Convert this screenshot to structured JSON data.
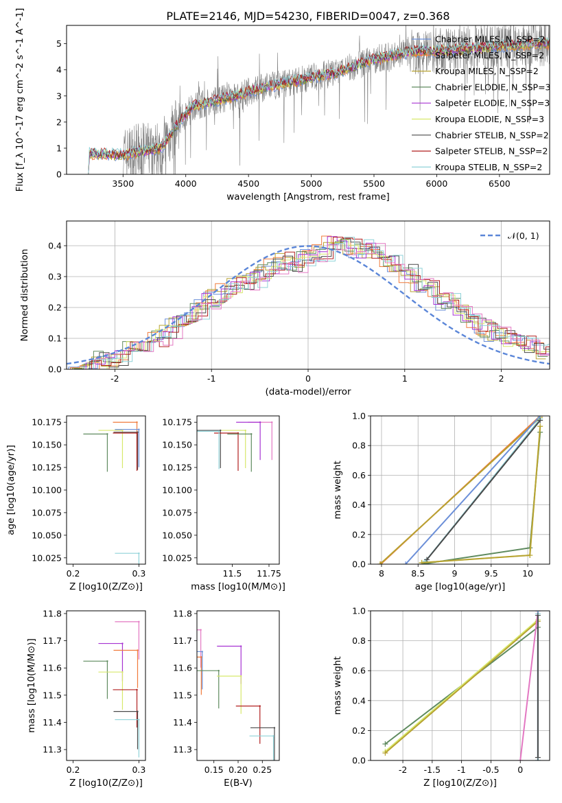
{
  "figure_title": "PLATE=2146, MJD=54230, FIBERID=0047, z=0.368",
  "colors": {
    "Chabrier MILES": "#6b8fd8",
    "Salpeter MILES": "#f07a3a",
    "Kroupa MILES": "#b7a232",
    "Chabrier ELODIE": "#5e8a5e",
    "Salpeter ELODIE": "#a632d2",
    "Kroupa ELODIE": "#d7e86b",
    "Chabrier STELIB": "#4a4a4a",
    "Salpeter STELIB": "#b01e1e",
    "Kroupa STELIB": "#8fd2d8",
    "observed": "#7f7f7f",
    "normal": "#5b86d8",
    "pink": "#e377c2"
  },
  "chart_data": [
    {
      "id": "spectrum",
      "type": "line",
      "title": "PLATE=2146, MJD=54230, FIBERID=0047, z=0.368",
      "xlabel": "wavelength [Angstrom, rest frame]",
      "ylabel": "Flux [f_λ 10^-17 erg cm^-2 s^-1 A^-1]",
      "xlim": [
        3050,
        6900
      ],
      "ylim": [
        0,
        5.7
      ],
      "xticks": [
        3500,
        4000,
        4500,
        5000,
        5500,
        6000,
        6500
      ],
      "yticks": [
        0,
        1,
        2,
        3,
        4,
        5
      ],
      "grid": false,
      "legend_position": "top-right",
      "legend": [
        {
          "label": "Chabrier MILES, N_SSP=2",
          "color": "#6b8fd8"
        },
        {
          "label": "Salpeter MILES, N_SSP=2",
          "color": "#f07a3a"
        },
        {
          "label": "Kroupa MILES, N_SSP=2",
          "color": "#b7a232"
        },
        {
          "label": "Chabrier ELODIE, N_SSP=3",
          "color": "#5e8a5e"
        },
        {
          "label": "Salpeter ELODIE, N_SSP=3",
          "color": "#a632d2"
        },
        {
          "label": "Kroupa ELODIE, N_SSP=3",
          "color": "#d7e86b"
        },
        {
          "label": "Chabrier STELIB, N_SSP=2",
          "color": "#4a4a4a"
        },
        {
          "label": "Salpeter STELIB, N_SSP=2",
          "color": "#b01e1e"
        },
        {
          "label": "Kroupa STELIB, N_SSP=2",
          "color": "#8fd2d8"
        }
      ],
      "continuum_trend": [
        [
          3200,
          0.8
        ],
        [
          3500,
          0.75
        ],
        [
          3800,
          1.0
        ],
        [
          3950,
          2.0
        ],
        [
          4050,
          2.6
        ],
        [
          4400,
          3.0
        ],
        [
          4600,
          3.3
        ],
        [
          5000,
          3.7
        ],
        [
          5200,
          3.9
        ],
        [
          5500,
          4.4
        ],
        [
          5800,
          4.7
        ],
        [
          6100,
          4.75
        ],
        [
          6500,
          4.9
        ],
        [
          6800,
          5.0
        ]
      ],
      "observed_range": [
        3500,
        6900
      ]
    },
    {
      "id": "residuals",
      "type": "line",
      "xlabel": "(data-model)/error",
      "ylabel": "Normed distribution",
      "xlim": [
        -2.5,
        2.5
      ],
      "ylim": [
        0,
        0.48
      ],
      "xticks": [
        -2,
        -1,
        0,
        1,
        2
      ],
      "yticks": [
        0.0,
        0.1,
        0.2,
        0.3,
        0.4
      ],
      "grid": true,
      "legend_position": "top-right",
      "legend": [
        {
          "label": "𝒩(0, 1)",
          "color": "#5b86d8",
          "style": "dashed"
        }
      ],
      "histogram_bins": [
        -2.45,
        -2.35,
        -2.25,
        -2.15,
        -2.05,
        -1.95,
        -1.85,
        -1.75,
        -1.65,
        -1.55,
        -1.45,
        -1.35,
        -1.25,
        -1.15,
        -1.05,
        -0.95,
        -0.85,
        -0.75,
        -0.65,
        -0.55,
        -0.45,
        -0.35,
        -0.25,
        -0.15,
        -0.05,
        0.05,
        0.15,
        0.25,
        0.35,
        0.45,
        0.55,
        0.65,
        0.75,
        0.85,
        0.95,
        1.05,
        1.15,
        1.25,
        1.35,
        1.45,
        1.55,
        1.65,
        1.75,
        1.85,
        1.95,
        2.05,
        2.15,
        2.25,
        2.35,
        2.45
      ],
      "histogram_values": [
        0.01,
        0.01,
        0.02,
        0.03,
        0.02,
        0.04,
        0.06,
        0.07,
        0.09,
        0.1,
        0.12,
        0.15,
        0.16,
        0.19,
        0.22,
        0.23,
        0.25,
        0.27,
        0.28,
        0.29,
        0.31,
        0.33,
        0.35,
        0.34,
        0.36,
        0.37,
        0.38,
        0.41,
        0.4,
        0.4,
        0.39,
        0.38,
        0.37,
        0.36,
        0.34,
        0.31,
        0.28,
        0.26,
        0.24,
        0.22,
        0.2,
        0.18,
        0.15,
        0.13,
        0.11,
        0.1,
        0.09,
        0.08,
        0.07,
        0.06
      ]
    },
    {
      "id": "age-vs-Z",
      "type": "scatter",
      "xlabel": "Z [log10(Z/Z⊙)]",
      "ylabel": "age  [log10(age/yr)]",
      "xlim": [
        0.19,
        0.31
      ],
      "ylim": [
        10.018,
        10.182
      ],
      "xticks": [
        0.2,
        0.3
      ],
      "yticks": [
        10.025,
        10.05,
        10.075,
        10.1,
        10.125,
        10.15,
        10.175
      ],
      "points": [
        {
          "x": 0.297,
          "y": 10.175,
          "color": "#f07a3a"
        },
        {
          "x": 0.3,
          "y": 10.167,
          "color": "#6b8fd8"
        },
        {
          "x": 0.252,
          "y": 10.162,
          "color": "#5e8a5e"
        },
        {
          "x": 0.275,
          "y": 10.166,
          "color": "#d7e86b"
        },
        {
          "x": 0.298,
          "y": 10.164,
          "color": "#4a4a4a"
        },
        {
          "x": 0.297,
          "y": 10.163,
          "color": "#b01e1e"
        },
        {
          "x": 0.3,
          "y": 10.03,
          "color": "#8fd2d8"
        }
      ]
    },
    {
      "id": "age-vs-mass",
      "type": "scatter",
      "xlabel": "mass [log10(M/M⊙)]",
      "ylabel": "",
      "xlim": [
        11.26,
        11.82
      ],
      "ylim": [
        10.018,
        10.182
      ],
      "xticks": [
        11.5,
        11.75
      ],
      "yticks": [
        10.025,
        10.05,
        10.075,
        10.1,
        10.125,
        10.15,
        10.175
      ],
      "points": [
        {
          "x": 11.77,
          "y": 10.175,
          "color": "#e377c2"
        },
        {
          "x": 11.42,
          "y": 10.166,
          "color": "#4a4a4a"
        },
        {
          "x": 11.59,
          "y": 10.166,
          "color": "#d7e86b"
        },
        {
          "x": 11.54,
          "y": 10.163,
          "color": "#b01e1e"
        },
        {
          "x": 11.63,
          "y": 10.162,
          "color": "#5e8a5e"
        },
        {
          "x": 11.69,
          "y": 10.175,
          "color": "#a632d2"
        },
        {
          "x": 11.41,
          "y": 10.165,
          "color": "#8fd2d8"
        }
      ]
    },
    {
      "id": "weight-vs-age",
      "type": "line",
      "xlabel": "age  [log10(age/yr)]",
      "ylabel": "mass weight",
      "xlim": [
        7.85,
        10.3
      ],
      "ylim": [
        0,
        1
      ],
      "xticks": [
        8.0,
        8.5,
        9.0,
        9.5,
        10.0
      ],
      "yticks": [
        0.0,
        0.2,
        0.4,
        0.6,
        0.8,
        1.0
      ],
      "grid": true,
      "series": [
        {
          "color": "#f07a3a",
          "x": [
            7.99,
            10.17
          ],
          "y": [
            0.0,
            1.0
          ]
        },
        {
          "color": "#b7a232",
          "x": [
            7.98,
            10.17
          ],
          "y": [
            0.0,
            0.99
          ]
        },
        {
          "color": "#6b8fd8",
          "x": [
            8.33,
            10.17
          ],
          "y": [
            0.0,
            1.0
          ]
        },
        {
          "color": "#8fd2d8",
          "x": [
            8.6,
            10.17
          ],
          "y": [
            0.02,
            0.98
          ]
        },
        {
          "color": "#4a4a4a",
          "x": [
            8.62,
            10.17
          ],
          "y": [
            0.03,
            0.97
          ]
        },
        {
          "color": "#5e8a5e",
          "x": [
            8.55,
            10.03,
            10.17
          ],
          "y": [
            0.0,
            0.11,
            0.89
          ]
        },
        {
          "color": "#d7e86b",
          "x": [
            8.55,
            10.03,
            10.17
          ],
          "y": [
            0.01,
            0.06,
            0.93
          ]
        },
        {
          "color": "#b7a232",
          "x": [
            8.55,
            10.03,
            10.17
          ],
          "y": [
            0.01,
            0.06,
            0.93
          ]
        }
      ]
    },
    {
      "id": "mass-vs-Z",
      "type": "scatter",
      "xlabel": "Z [log10(Z/Z⊙)]",
      "ylabel": "mass [log10(M/M⊙)]",
      "xlim": [
        0.19,
        0.31
      ],
      "ylim": [
        11.26,
        11.81
      ],
      "xticks": [
        0.2,
        0.3
      ],
      "yticks": [
        11.3,
        11.4,
        11.5,
        11.6,
        11.7,
        11.8
      ],
      "points": [
        {
          "x": 0.3,
          "y": 11.77,
          "color": "#e377c2"
        },
        {
          "x": 0.275,
          "y": 11.69,
          "color": "#a632d2"
        },
        {
          "x": 0.298,
          "y": 11.665,
          "color": "#f07a3a"
        },
        {
          "x": 0.252,
          "y": 11.625,
          "color": "#5e8a5e"
        },
        {
          "x": 0.275,
          "y": 11.585,
          "color": "#d7e86b"
        },
        {
          "x": 0.297,
          "y": 11.52,
          "color": "#b01e1e"
        },
        {
          "x": 0.298,
          "y": 11.44,
          "color": "#4a4a4a"
        },
        {
          "x": 0.3,
          "y": 11.41,
          "color": "#8fd2d8"
        }
      ]
    },
    {
      "id": "mass-vs-ebv",
      "type": "scatter",
      "xlabel": "E(B-V)",
      "ylabel": "",
      "xlim": [
        0.115,
        0.285
      ],
      "ylim": [
        11.26,
        11.81
      ],
      "xticks": [
        0.15,
        0.2,
        0.25
      ],
      "xtick_labels": [
        "0.15",
        "0.20",
        "0.25"
      ],
      "yticks": [
        11.3,
        11.4,
        11.5,
        11.6,
        11.7,
        11.8
      ],
      "points": [
        {
          "x": 0.123,
          "y": 11.74,
          "color": "#e377c2"
        },
        {
          "x": 0.126,
          "y": 11.66,
          "color": "#6b8fd8"
        },
        {
          "x": 0.124,
          "y": 11.64,
          "color": "#f07a3a"
        },
        {
          "x": 0.16,
          "y": 11.59,
          "color": "#5e8a5e"
        },
        {
          "x": 0.206,
          "y": 11.68,
          "color": "#a632d2"
        },
        {
          "x": 0.206,
          "y": 11.57,
          "color": "#d7e86b"
        },
        {
          "x": 0.245,
          "y": 11.46,
          "color": "#b01e1e"
        },
        {
          "x": 0.275,
          "y": 11.38,
          "color": "#4a4a4a"
        },
        {
          "x": 0.273,
          "y": 11.35,
          "color": "#8fd2d8"
        }
      ]
    },
    {
      "id": "weight-vs-Z",
      "type": "line",
      "xlabel": "Z [log10(Z/Z⊙)]",
      "ylabel": "mass weight",
      "xlim": [
        -2.55,
        0.5
      ],
      "ylim": [
        0,
        1
      ],
      "xticks": [
        -2.0,
        -1.5,
        -1.0,
        -0.5,
        0.0
      ],
      "yticks": [
        0.0,
        0.2,
        0.4,
        0.6,
        0.8,
        1.0
      ],
      "grid": true,
      "series": [
        {
          "color": "#5e8a5e",
          "x": [
            -2.3,
            0.3
          ],
          "y": [
            0.11,
            0.89
          ]
        },
        {
          "color": "#d7e86b",
          "x": [
            -2.3,
            0.3
          ],
          "y": [
            0.06,
            0.94
          ]
        },
        {
          "color": "#b7a232",
          "x": [
            -2.3,
            0.3
          ],
          "y": [
            0.05,
            0.93
          ]
        },
        {
          "color": "#e377c2",
          "x": [
            0.0,
            0.3
          ],
          "y": [
            0.0,
            1.0
          ]
        },
        {
          "color": "#6b8fd8",
          "x": [
            0.3,
            0.3
          ],
          "y": [
            0.0,
            1.0
          ]
        },
        {
          "color": "#8fd2d8",
          "x": [
            0.3,
            0.3
          ],
          "y": [
            0.0,
            0.98
          ]
        },
        {
          "color": "#4a4a4a",
          "x": [
            0.3,
            0.3
          ],
          "y": [
            0.02,
            0.97
          ]
        }
      ]
    }
  ]
}
